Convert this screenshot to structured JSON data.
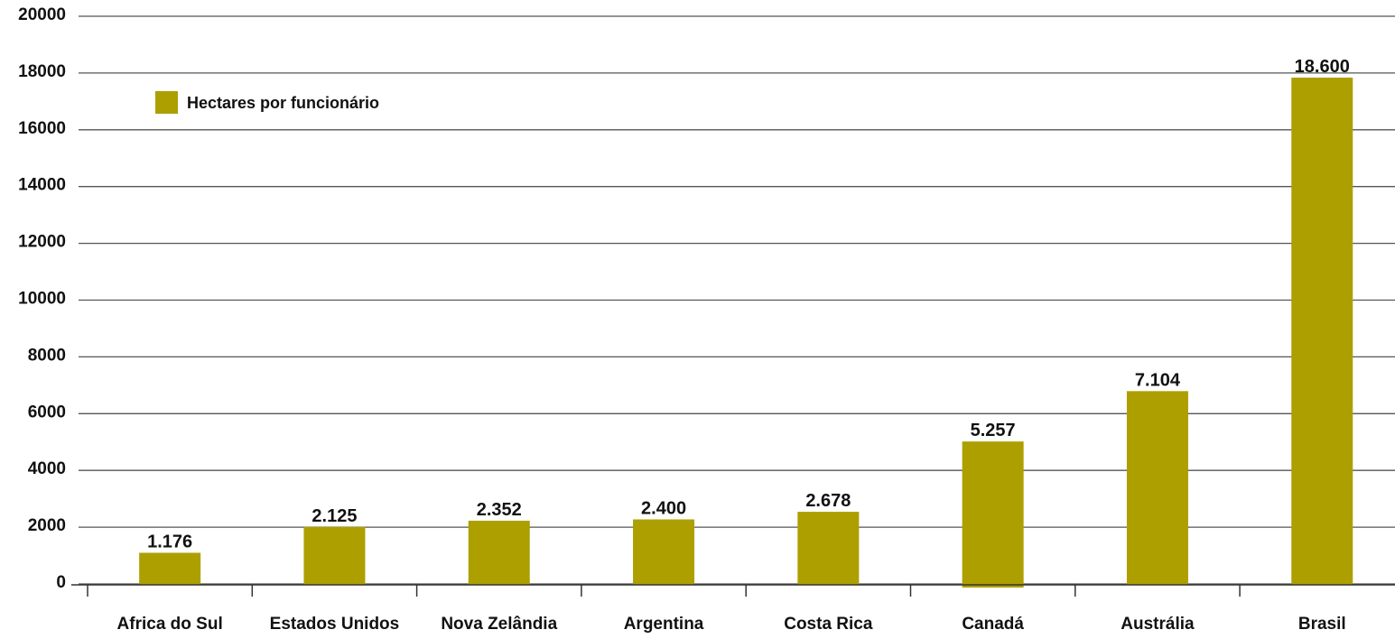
{
  "chart_data": {
    "type": "bar",
    "categories": [
      "Africa do Sul",
      "Estados Unidos",
      "Nova Zelândia",
      "Argentina",
      "Costa Rica",
      "Canadá",
      "Austrália",
      "Brasil"
    ],
    "series": [
      {
        "name": "Hectares por funcionário",
        "values": [
          1176,
          2125,
          2352,
          2400,
          2678,
          5257,
          7104,
          18600
        ],
        "value_labels": [
          "1.176",
          "2.125",
          "2.352",
          "2.400",
          "2.678",
          "5.257",
          "7.104",
          "18.600"
        ]
      }
    ],
    "ytick_labels": [
      "20000",
      "18000",
      "16000",
      "14000",
      "12000",
      "10000",
      "8000",
      "6000",
      "4000",
      "2000",
      "0"
    ],
    "legend": {
      "label": "Hectares por funcionário",
      "placement": "top-left"
    },
    "grid": true,
    "colors": {
      "bar": "#ad9f00",
      "grid": "#555555",
      "axis": "#333333"
    }
  }
}
